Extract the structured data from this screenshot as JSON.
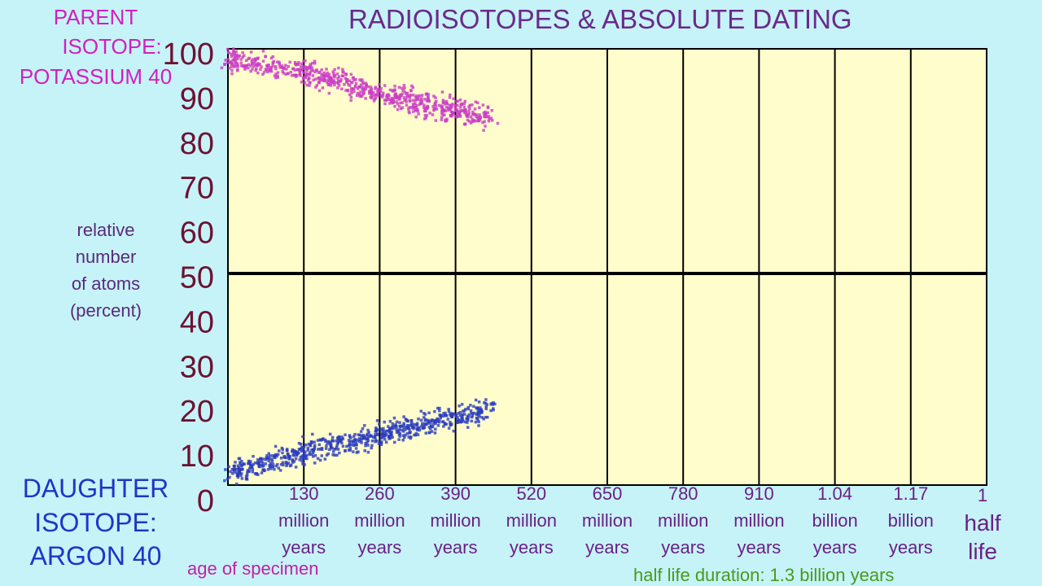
{
  "chart_data": {
    "type": "scatter",
    "title": "RADIOISOTOPES & ABSOLUTE DATING",
    "ylabel": "relative number of atoms (percent)",
    "xlabel": "age of specimen",
    "annotation": "half life duration: 1.3 billion years",
    "ylim": [
      0,
      100
    ],
    "yticks": [
      "0",
      "10",
      "20",
      "30",
      "40",
      "50",
      "60",
      "70",
      "80",
      "90",
      "100"
    ],
    "xlim_million_years": [
      0,
      1300
    ],
    "xticks": [
      {
        "num": "130",
        "unit": "million",
        "unit2": "years"
      },
      {
        "num": "260",
        "unit": "million",
        "unit2": "years"
      },
      {
        "num": "390",
        "unit": "million",
        "unit2": "years"
      },
      {
        "num": "520",
        "unit": "million",
        "unit2": "years"
      },
      {
        "num": "650",
        "unit": "million",
        "unit2": "years"
      },
      {
        "num": "780",
        "unit": "million",
        "unit2": "years"
      },
      {
        "num": "910",
        "unit": "million",
        "unit2": "years"
      },
      {
        "num": "1.04",
        "unit": "billion",
        "unit2": "years"
      },
      {
        "num": "1.17",
        "unit": "billion",
        "unit2": "years"
      },
      {
        "num": "1",
        "unit": "half",
        "unit2": "life"
      }
    ],
    "gridlines": {
      "vertical_every_million_years": 130,
      "horizontal_at": 50
    },
    "series": [
      {
        "name": "PARENT ISOTOPE: POTASSIUM 40",
        "color": "#c93cc8",
        "x": [
          0,
          130,
          260,
          390,
          455
        ],
        "y": [
          98,
          95,
          90,
          86,
          84
        ]
      },
      {
        "name": "DAUGHTER ISOTOPE: ARGON 40",
        "color": "#2a3cc0",
        "x": [
          0,
          130,
          260,
          390,
          455
        ],
        "y": [
          3,
          8,
          12,
          16,
          18
        ]
      }
    ]
  },
  "labels": {
    "parent": [
      "PARENT",
      "ISOTOPE:",
      "POTASSIUM 40"
    ],
    "daughter": [
      "DAUGHTER",
      "ISOTOPE:",
      "ARGON 40"
    ],
    "ylabel": [
      "relative",
      "number",
      "of atoms",
      "(percent)"
    ]
  },
  "colors": {
    "background": "#c6f3f8",
    "plot": "#fffdcc"
  }
}
